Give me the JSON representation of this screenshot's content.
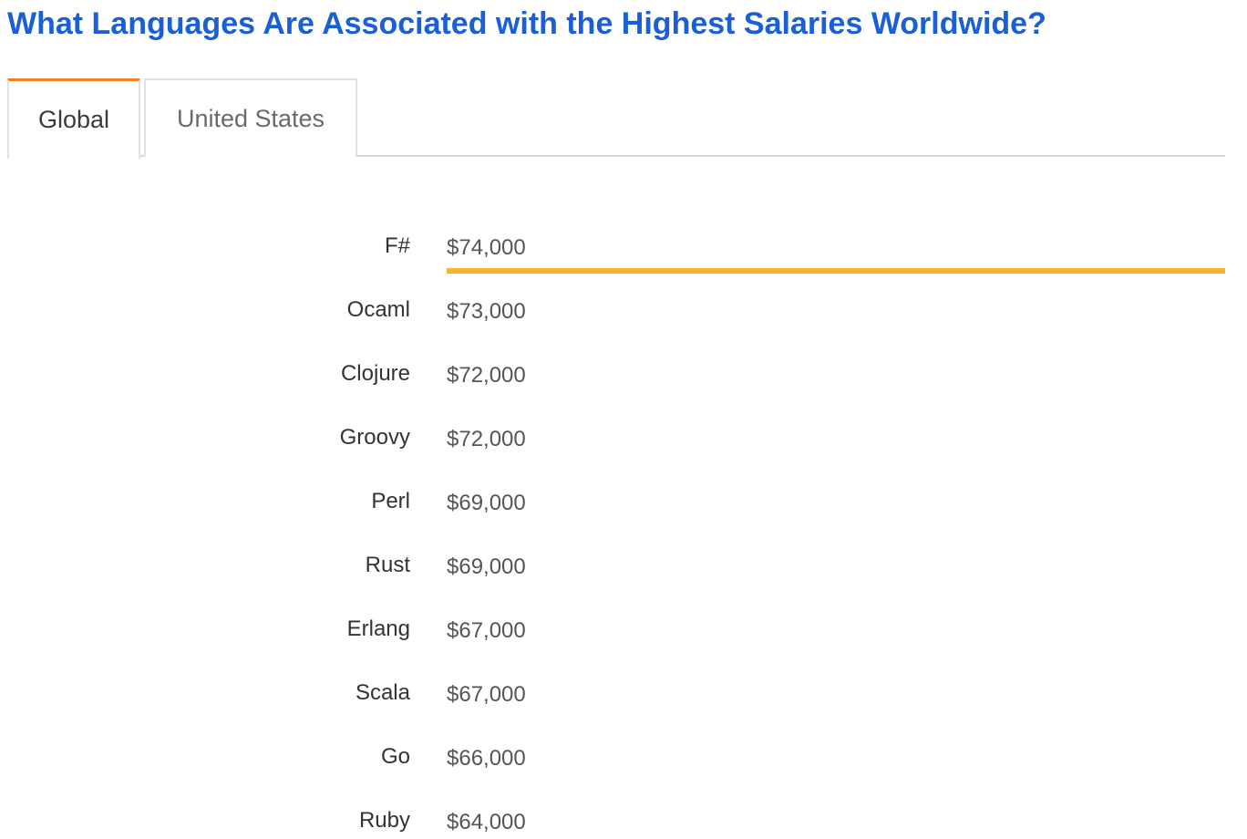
{
  "title": "What Languages Are Associated with the Highest Salaries Worldwide?",
  "tabs": [
    {
      "label": "Global",
      "active": true
    },
    {
      "label": "United States",
      "active": false
    }
  ],
  "colors": {
    "title": "#1a5fd6",
    "bar": "#fbb131",
    "active_tab_accent": "#f48024"
  },
  "chart_data": {
    "type": "bar",
    "orientation": "horizontal",
    "categories": [
      "F#",
      "Ocaml",
      "Clojure",
      "Groovy",
      "Perl",
      "Rust",
      "Erlang",
      "Scala",
      "Go",
      "Ruby"
    ],
    "values": [
      74000,
      73000,
      72000,
      72000,
      69000,
      69000,
      67000,
      67000,
      66000,
      64000
    ],
    "value_labels": [
      "$74,000",
      "$73,000",
      "$72,000",
      "$72,000",
      "$69,000",
      "$69,000",
      "$67,000",
      "$67,000",
      "$66,000",
      "$64,000"
    ],
    "title": "",
    "xlabel": "",
    "ylabel": "",
    "xlim": [
      0,
      74000
    ],
    "grid": false,
    "legend": "none"
  }
}
